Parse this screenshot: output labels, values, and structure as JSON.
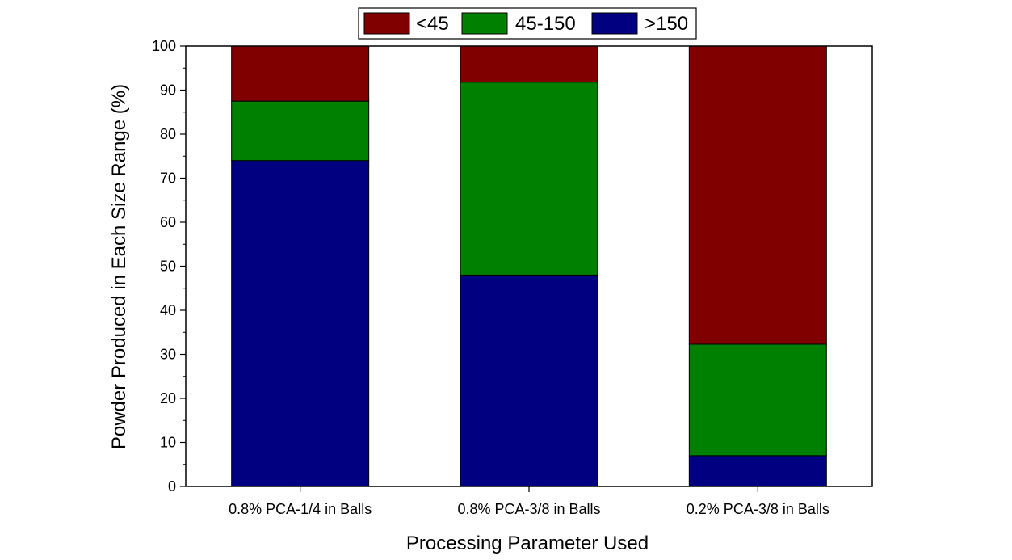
{
  "chart_data": {
    "type": "bar",
    "stacked": true,
    "categories": [
      "0.8% PCA-1/4 in Balls",
      "0.8% PCA-3/8 in Balls",
      "0.2% PCA-3/8 in Balls"
    ],
    "series": [
      {
        "name": ">150",
        "values": [
          74,
          48,
          7
        ],
        "color": "#000080"
      },
      {
        "name": "45-150",
        "values": [
          13.5,
          43.8,
          25.3
        ],
        "color": "#008000"
      },
      {
        "name": "<45",
        "values": [
          12.5,
          8.2,
          67.7
        ],
        "color": "#800000"
      }
    ],
    "legend_order": [
      "<45",
      "45-150",
      ">150"
    ],
    "legend_position": "top-center",
    "xlabel": "Processing Parameter Used",
    "ylabel": "Powder Produced in Each Size Range (%)",
    "ylim": [
      0,
      100
    ],
    "yticks": [
      0,
      10,
      20,
      30,
      40,
      50,
      60,
      70,
      80,
      90,
      100
    ],
    "grid": false
  }
}
